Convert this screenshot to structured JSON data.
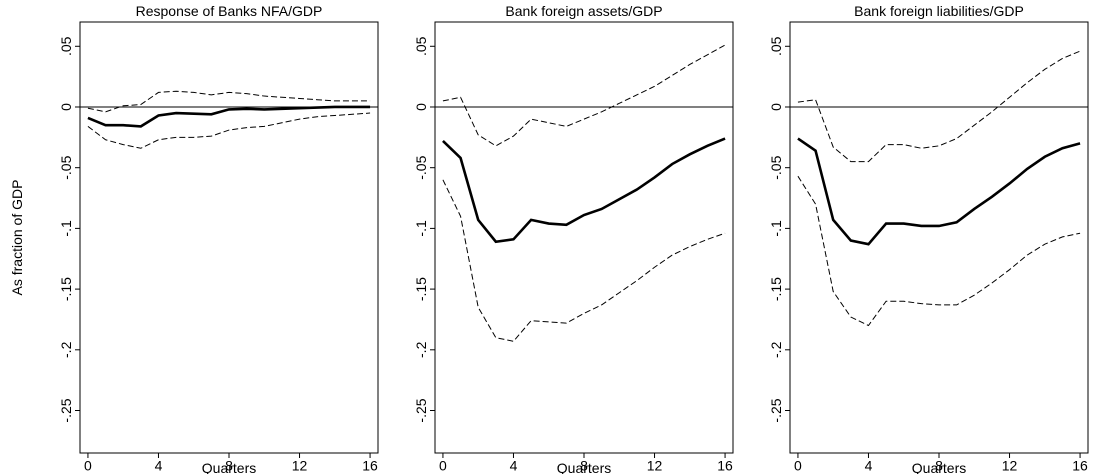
{
  "chart_data": [
    {
      "type": "line",
      "title": "Response of Banks NFA/GDP",
      "ylabel": "As fraction of GDP",
      "xlabel": "Quarters",
      "x": [
        0,
        1,
        2,
        3,
        4,
        5,
        6,
        7,
        8,
        9,
        10,
        11,
        12,
        13,
        14,
        15,
        16
      ],
      "xlim": [
        -0.45,
        16.45
      ],
      "xticks": [
        0,
        4,
        8,
        12,
        16
      ],
      "ylim": [
        -0.285,
        0.07
      ],
      "yticks": [
        {
          "value": 0.05,
          "label": ".05"
        },
        0,
        {
          "value": -0.05,
          "label": "-.05"
        },
        {
          "value": -0.1,
          "label": "-.1"
        },
        {
          "value": -0.15,
          "label": "-.15"
        },
        {
          "value": -0.2,
          "label": "-.2"
        },
        {
          "value": -0.25,
          "label": "-.25"
        }
      ],
      "zero_line": true,
      "series": [
        {
          "color": "#000000",
          "style": "solid",
          "values": [
            -0.009,
            -0.015,
            -0.015,
            -0.016,
            -0.007,
            -0.005,
            -0.0055,
            -0.006,
            -0.002,
            -0.0015,
            -0.002,
            -0.0015,
            -0.001,
            -0.0005,
            0,
            0,
            0
          ]
        },
        {
          "color": "#000000",
          "style": "dashed",
          "values": [
            -0.001,
            -0.004,
            0.001,
            0.002,
            0.012,
            0.013,
            0.012,
            0.01,
            0.012,
            0.011,
            0.009,
            0.008,
            0.007,
            0.006,
            0.005,
            0.005,
            0.005
          ]
        },
        {
          "color": "#000000",
          "style": "dashed",
          "values": [
            -0.016,
            -0.027,
            -0.031,
            -0.034,
            -0.027,
            -0.025,
            -0.025,
            -0.024,
            -0.019,
            -0.017,
            -0.016,
            -0.013,
            -0.01,
            -0.008,
            -0.007,
            -0.006,
            -0.005
          ]
        }
      ]
    },
    {
      "type": "line",
      "title": "Bank foreign assets/GDP",
      "xlabel": "Quarters",
      "x": [
        0,
        1,
        2,
        3,
        4,
        5,
        6,
        7,
        8,
        9,
        10,
        11,
        12,
        13,
        14,
        15,
        16
      ],
      "xlim": [
        -0.45,
        16.45
      ],
      "xticks": [
        0,
        4,
        8,
        12,
        16
      ],
      "ylim": [
        -0.285,
        0.07
      ],
      "yticks": [
        {
          "value": 0.05,
          "label": ".05"
        },
        0,
        {
          "value": -0.05,
          "label": "-.05"
        },
        {
          "value": -0.1,
          "label": "-.1"
        },
        {
          "value": -0.15,
          "label": "-.15"
        },
        {
          "value": -0.2,
          "label": "-.2"
        },
        {
          "value": -0.25,
          "label": "-.25"
        }
      ],
      "zero_line": true,
      "series": [
        {
          "color": "#000000",
          "style": "solid",
          "values": [
            -0.028,
            -0.042,
            -0.093,
            -0.111,
            -0.109,
            -0.093,
            -0.096,
            -0.097,
            -0.089,
            -0.084,
            -0.076,
            -0.068,
            -0.058,
            -0.047,
            -0.039,
            -0.032,
            -0.026
          ]
        },
        {
          "color": "#000000",
          "style": "dashed",
          "values": [
            0.005,
            0.008,
            -0.023,
            -0.032,
            -0.024,
            -0.01,
            -0.013,
            -0.016,
            -0.01,
            -0.004,
            0.003,
            0.01,
            0.017,
            0.026,
            0.035,
            0.043,
            0.051
          ]
        },
        {
          "color": "#000000",
          "style": "dashed",
          "values": [
            -0.06,
            -0.09,
            -0.165,
            -0.19,
            -0.193,
            -0.176,
            -0.177,
            -0.178,
            -0.17,
            -0.163,
            -0.153,
            -0.143,
            -0.132,
            -0.122,
            -0.115,
            -0.109,
            -0.104
          ]
        }
      ]
    },
    {
      "type": "line",
      "title": "Bank foreign liabilities/GDP",
      "xlabel": "Quarters",
      "x": [
        0,
        1,
        2,
        3,
        4,
        5,
        6,
        7,
        8,
        9,
        10,
        11,
        12,
        13,
        14,
        15,
        16
      ],
      "xlim": [
        -0.45,
        16.45
      ],
      "xticks": [
        0,
        4,
        8,
        12,
        16
      ],
      "ylim": [
        -0.285,
        0.07
      ],
      "yticks": [
        {
          "value": 0.05,
          "label": ".05"
        },
        0,
        {
          "value": -0.05,
          "label": "-.05"
        },
        {
          "value": -0.1,
          "label": "-.1"
        },
        {
          "value": -0.15,
          "label": "-.15"
        },
        {
          "value": -0.2,
          "label": "-.2"
        },
        {
          "value": -0.25,
          "label": "-.25"
        }
      ],
      "zero_line": true,
      "series": [
        {
          "color": "#000000",
          "style": "solid",
          "values": [
            -0.026,
            -0.036,
            -0.093,
            -0.11,
            -0.113,
            -0.096,
            -0.096,
            -0.098,
            -0.098,
            -0.095,
            -0.084,
            -0.074,
            -0.063,
            -0.051,
            -0.041,
            -0.034,
            -0.03
          ]
        },
        {
          "color": "#000000",
          "style": "dashed",
          "values": [
            0.004,
            0.006,
            -0.033,
            -0.045,
            -0.045,
            -0.031,
            -0.031,
            -0.034,
            -0.032,
            -0.026,
            -0.015,
            -0.004,
            0.008,
            0.02,
            0.031,
            0.04,
            0.046
          ]
        },
        {
          "color": "#000000",
          "style": "dashed",
          "values": [
            -0.057,
            -0.08,
            -0.152,
            -0.173,
            -0.18,
            -0.16,
            -0.16,
            -0.162,
            -0.163,
            -0.163,
            -0.155,
            -0.145,
            -0.134,
            -0.122,
            -0.113,
            -0.107,
            -0.104
          ]
        }
      ]
    }
  ]
}
